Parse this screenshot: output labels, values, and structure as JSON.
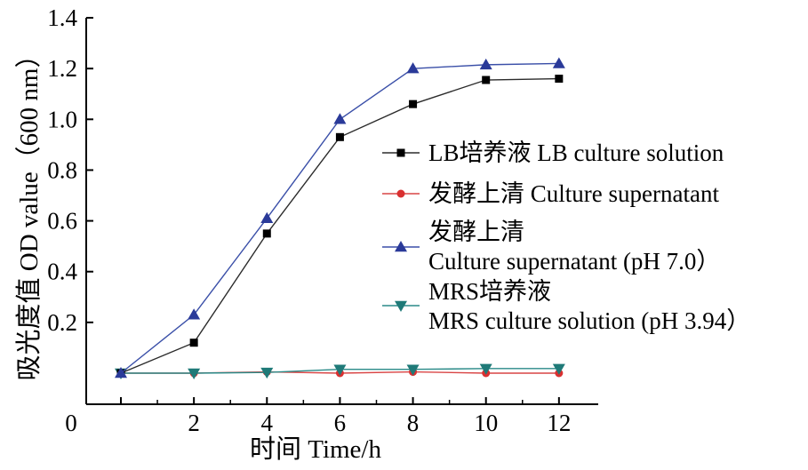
{
  "chart_data": {
    "type": "line",
    "title": "",
    "xlabel": "时间  Time/h",
    "ylabel": "吸光度值 OD value（600 nm）",
    "x": [
      0,
      2,
      4,
      6,
      8,
      10,
      12
    ],
    "xlim": [
      -1,
      13
    ],
    "ylim": [
      -0.08,
      1.4
    ],
    "x_ticks": [
      "0",
      "2",
      "4",
      "6",
      "8",
      "10",
      "12"
    ],
    "y_ticks": [
      "0.2",
      "0.4",
      "0.6",
      "0.8",
      "1.0",
      "1.2",
      "1.4"
    ],
    "y_tick_values": [
      0.2,
      0.4,
      0.6,
      0.8,
      1.0,
      1.2,
      1.4
    ],
    "grid": false,
    "legend_position": "right",
    "series": [
      {
        "name": "LB培养液 LB culture solution",
        "legend_lines": [
          "LB培养液 LB culture solution"
        ],
        "marker": "square",
        "color": "#2b2b2b",
        "marker_color": "#000000",
        "values": [
          0.0,
          0.12,
          0.55,
          0.93,
          1.06,
          1.155,
          1.16
        ]
      },
      {
        "name": "发酵上清 Culture supernatant",
        "legend_lines": [
          "发酵上清 Culture supernatant"
        ],
        "marker": "circle",
        "color": "#d94545",
        "marker_color": "#d93030",
        "values": [
          0.0,
          0.0,
          0.005,
          0.0,
          0.005,
          0.0,
          0.0
        ]
      },
      {
        "name": "发酵上清 Culture supernatant (pH 7.0）",
        "legend_lines": [
          "发酵上清",
          "Culture supernatant (pH 7.0）"
        ],
        "marker": "triangle-up",
        "color": "#3a4fa8",
        "marker_color": "#2a3a99",
        "values": [
          0.0,
          0.23,
          0.61,
          1.0,
          1.2,
          1.215,
          1.22
        ]
      },
      {
        "name": "MRS培养液 MRS culture solution (pH 3.94）",
        "legend_lines": [
          "MRS培养液",
          "MRS culture solution (pH 3.94）"
        ],
        "marker": "triangle-down",
        "color": "#2a8a88",
        "marker_color": "#1f7a78",
        "values": [
          0.0,
          0.0,
          0.003,
          0.015,
          0.015,
          0.018,
          0.018
        ]
      }
    ]
  }
}
